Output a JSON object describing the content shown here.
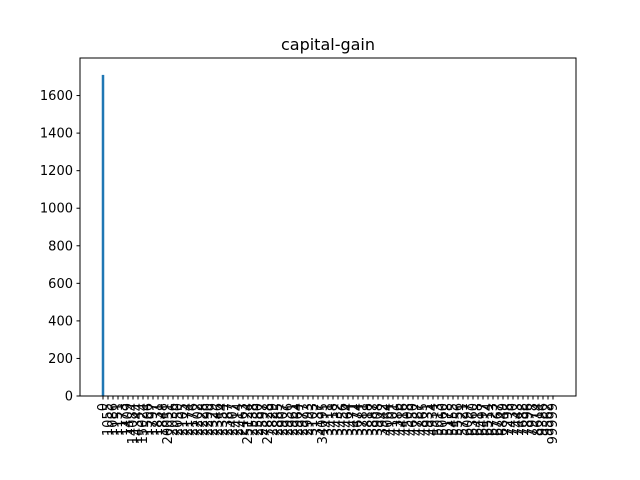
{
  "chart_data": {
    "type": "bar",
    "title": "capital-gain",
    "xlabel": "",
    "ylabel": "",
    "ylim": [
      0,
      1800
    ],
    "yticks": [
      0,
      200,
      400,
      600,
      800,
      1000,
      1200,
      1400,
      1600
    ],
    "grid": false,
    "legend": "none",
    "bar_color": "#1f77b4",
    "categories": [
      "0",
      "1055",
      "1086",
      "1151",
      "1173",
      "1409",
      "14084",
      "14344",
      "15024",
      "1506",
      "1797",
      "1831",
      "1848",
      "20051",
      "2036",
      "2050",
      "2105",
      "2174",
      "2176",
      "2202",
      "2228",
      "2290",
      "2329",
      "2346",
      "2354",
      "2387",
      "2407",
      "2414",
      "2463",
      "25124",
      "2538",
      "2580",
      "2597",
      "27828",
      "2829",
      "2885",
      "2907",
      "2936",
      "2961",
      "2964",
      "2977",
      "2993",
      "3103",
      "3137",
      "34095",
      "3411",
      "3418",
      "3432",
      "3456",
      "3464",
      "3471",
      "3674",
      "3781",
      "3818",
      "3887",
      "3908",
      "3942",
      "4064",
      "4101",
      "4386",
      "4416",
      "4508",
      "4650",
      "4787",
      "4865",
      "4931",
      "4934",
      "5013",
      "5060",
      "5178",
      "5455",
      "5556",
      "5721",
      "6097",
      "6360",
      "6418",
      "6497",
      "6514",
      "6723",
      "6767",
      "6849",
      "7298",
      "7430",
      "7443",
      "7688",
      "7896",
      "7978",
      "8614",
      "9386",
      "9562",
      "99999"
    ],
    "values": [
      1710,
      1,
      1,
      1,
      1,
      1,
      1,
      1,
      3,
      1,
      1,
      1,
      1,
      1,
      1,
      1,
      1,
      3,
      1,
      1,
      1,
      1,
      1,
      1,
      1,
      1,
      1,
      1,
      1,
      1,
      1,
      1,
      1,
      1,
      1,
      1,
      1,
      1,
      1,
      1,
      1,
      1,
      3,
      1,
      1,
      1,
      1,
      1,
      1,
      1,
      1,
      1,
      1,
      1,
      1,
      1,
      1,
      1,
      1,
      1,
      1,
      1,
      1,
      1,
      1,
      1,
      1,
      1,
      1,
      1,
      1,
      1,
      1,
      1,
      1,
      1,
      1,
      1,
      1,
      1,
      1,
      3,
      1,
      1,
      1,
      1,
      1,
      1,
      1,
      1,
      3
    ]
  }
}
